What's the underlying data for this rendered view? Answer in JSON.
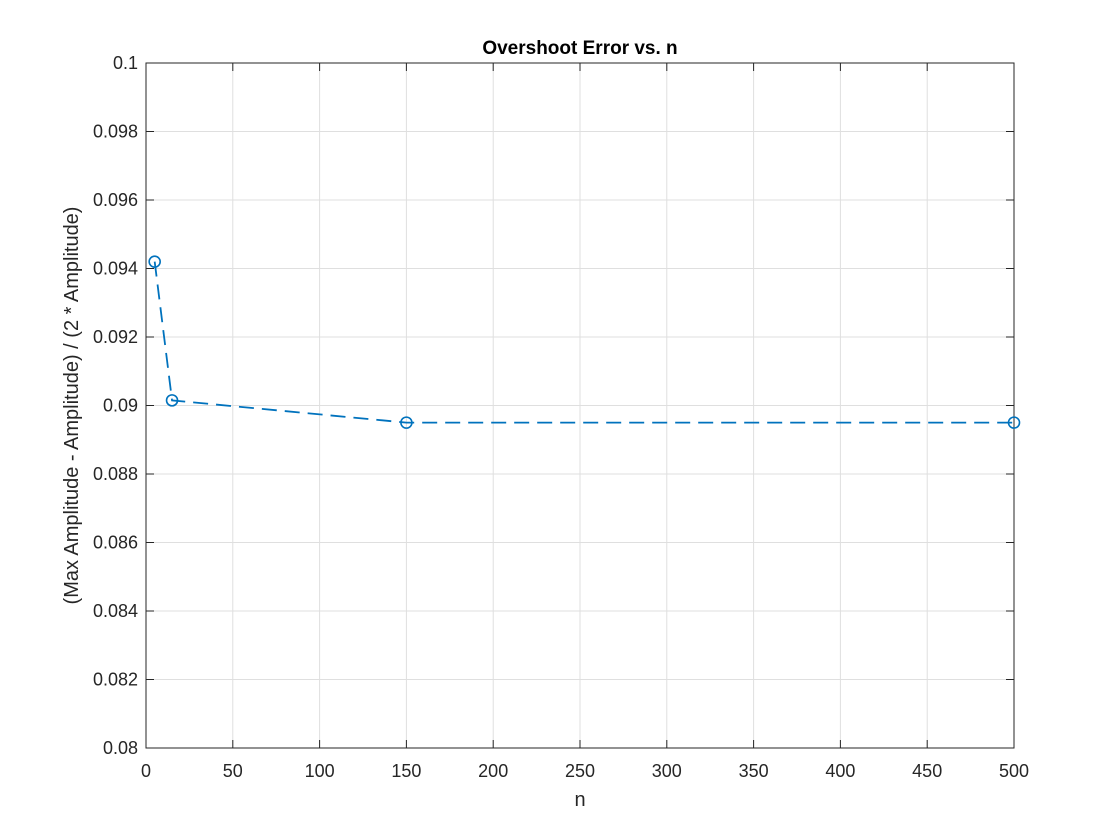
{
  "chart_data": {
    "type": "line",
    "title": "Overshoot Error vs. n",
    "xlabel": "n",
    "ylabel": "(Max Amplitude - Amplitude) / (2 * Amplitude)",
    "xlim": [
      0,
      500
    ],
    "ylim": [
      0.08,
      0.1
    ],
    "xticks": [
      0,
      50,
      100,
      150,
      200,
      250,
      300,
      350,
      400,
      450,
      500
    ],
    "xtick_labels": [
      "0",
      "50",
      "100",
      "150",
      "200",
      "250",
      "300",
      "350",
      "400",
      "450",
      "500"
    ],
    "yticks": [
      0.08,
      0.082,
      0.084,
      0.086,
      0.088,
      0.09,
      0.092,
      0.094,
      0.096,
      0.098,
      0.1
    ],
    "ytick_labels": [
      "0.08",
      "0.082",
      "0.084",
      "0.086",
      "0.088",
      "0.09",
      "0.092",
      "0.094",
      "0.096",
      "0.098",
      "0.1"
    ],
    "grid": true,
    "line_style": "dashed",
    "marker": "circle",
    "color": "#0072BD",
    "series": [
      {
        "x": [
          5,
          15,
          150,
          500
        ],
        "values": [
          0.0942,
          0.09015,
          0.0895,
          0.0895
        ]
      }
    ]
  }
}
